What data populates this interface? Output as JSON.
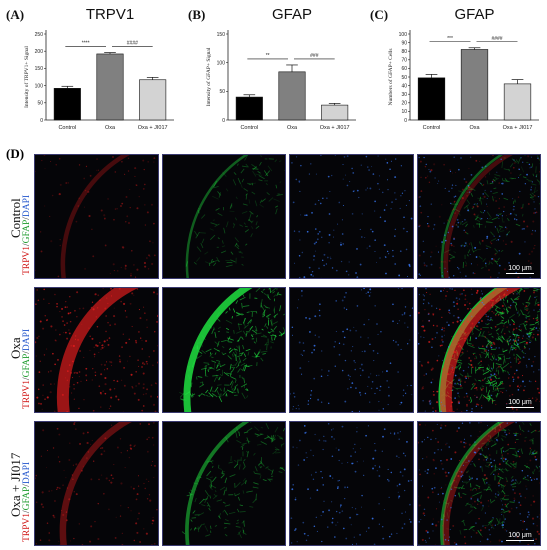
{
  "chart_data": [
    {
      "type": "bar",
      "panel_label": "(A)",
      "title": "TRPV1",
      "ylabel": "Intensity of TRPV1+ Signal",
      "categories": [
        "Control",
        "Oxa",
        "Oxa + JI017"
      ],
      "values": [
        92,
        192,
        117
      ],
      "errors": [
        6,
        4,
        7
      ],
      "ylim": [
        0,
        250
      ],
      "yticks": [
        0,
        50,
        100,
        150,
        200,
        250
      ],
      "bar_colors": [
        "#000000",
        "#808080",
        "#d3d3d3"
      ],
      "significance": [
        {
          "from": 0,
          "to": 1,
          "label": "****"
        },
        {
          "from": 1,
          "to": 2,
          "label": "####"
        }
      ]
    },
    {
      "type": "bar",
      "panel_label": "(B)",
      "title": "GFAP",
      "ylabel": "Intensity of GFAP+ Signal",
      "categories": [
        "Control",
        "Oxa",
        "Oxa + JI017"
      ],
      "values": [
        40,
        84,
        26
      ],
      "errors": [
        4,
        12,
        3
      ],
      "ylim": [
        0,
        150
      ],
      "yticks": [
        0,
        50,
        100,
        150
      ],
      "bar_colors": [
        "#000000",
        "#808080",
        "#d3d3d3"
      ],
      "significance": [
        {
          "from": 0,
          "to": 1,
          "label": "**"
        },
        {
          "from": 1,
          "to": 2,
          "label": "###"
        }
      ]
    },
    {
      "type": "bar",
      "panel_label": "(C)",
      "title": "GFAP",
      "ylabel": "Numbers of GFAP+ Cells",
      "categories": [
        "Control",
        "Oxa",
        "Oxa + JI017"
      ],
      "values": [
        49,
        82,
        42
      ],
      "errors": [
        4,
        2,
        5
      ],
      "ylim": [
        0,
        100
      ],
      "yticks": [
        0,
        10,
        20,
        30,
        40,
        50,
        60,
        70,
        80,
        90,
        100
      ],
      "bar_colors": [
        "#000000",
        "#808080",
        "#d3d3d3"
      ],
      "significance": [
        {
          "from": 0,
          "to": 1,
          "label": "***"
        },
        {
          "from": 1,
          "to": 2,
          "label": "####"
        }
      ]
    }
  ],
  "micrographs": {
    "panel_label": "(D)",
    "rows": [
      {
        "label": "Control",
        "stain": [
          "TRPV1",
          "GFAP",
          "DAPI"
        ],
        "scale_bar": "100 μm",
        "intensity": 0.25
      },
      {
        "label": "Oxa",
        "stain": [
          "TRPV1",
          "GFAP",
          "DAPI"
        ],
        "scale_bar": "100 μm",
        "intensity": 1.0
      },
      {
        "label": "Oxa + JI017",
        "stain": [
          "TRPV1",
          "GFAP",
          "DAPI"
        ],
        "scale_bar": "100 μm",
        "intensity": 0.45
      }
    ],
    "channel_colors": {
      "trpv1": "#ff2020",
      "gfap": "#20e040",
      "dapi": "#3a7cff"
    }
  }
}
